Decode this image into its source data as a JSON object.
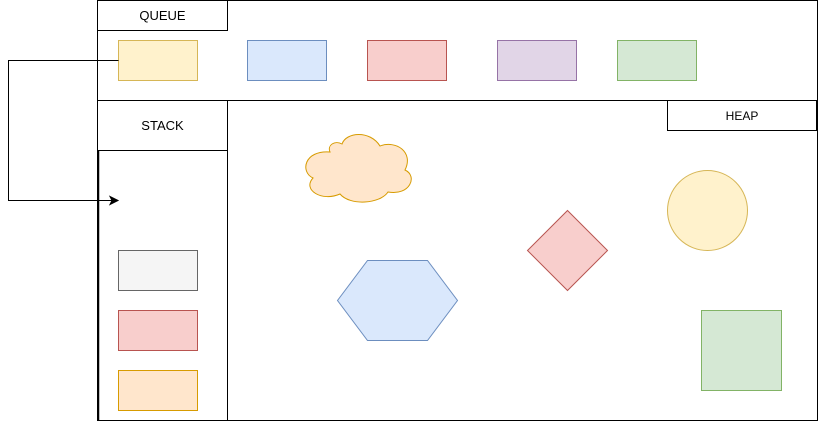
{
  "labels": {
    "queue": "QUEUE",
    "stack": "STACK",
    "heap": "HEAP"
  },
  "colors": {
    "yellow_fill": "#fff2cc",
    "yellow_stroke": "#d6b656",
    "blue_fill": "#dae8fc",
    "blue_stroke": "#6c8ebf",
    "red_fill": "#f8cecc",
    "red_stroke": "#b85450",
    "purple_fill": "#e1d5e7",
    "purple_stroke": "#9673a6",
    "green_fill": "#d5e8d4",
    "green_stroke": "#82b366",
    "gray_fill": "#f5f5f5",
    "gray_stroke": "#666666",
    "orange_fill": "#ffe6cc",
    "orange_stroke": "#d79b00"
  },
  "queue_items": [
    "yellow",
    "blue",
    "red",
    "purple",
    "green"
  ],
  "stack_items": [
    "gray",
    "red",
    "orange"
  ],
  "heap_shapes": [
    "cloud-orange",
    "hexagon-blue",
    "diamond-red",
    "circle-yellow",
    "square-green"
  ]
}
